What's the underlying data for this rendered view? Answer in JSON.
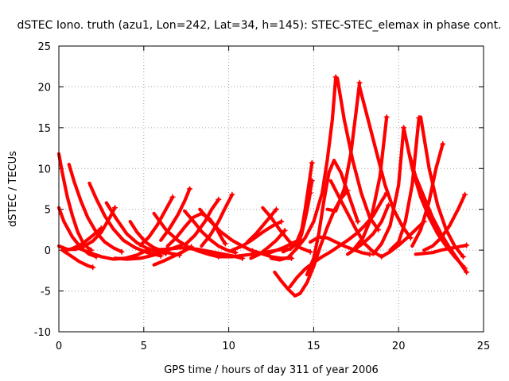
{
  "chart_data": {
    "type": "scatter",
    "title": "dSTEC Iono. truth (azu1, Lon=242, Lat=34, h=145): STEC-STEC_elemax in phase cont.",
    "xlabel": "GPS time / hours of day 311 of year 2006",
    "ylabel": "dSTEC  / TECUs",
    "xlim": [
      0,
      25
    ],
    "ylim": [
      -10,
      25
    ],
    "xticks": [
      "0",
      "5",
      "10",
      "15",
      "20",
      "25"
    ],
    "yticks": [
      "-10",
      "-5",
      "0",
      "5",
      "10",
      "15",
      "20",
      "25"
    ],
    "grid": true,
    "marker": "plus",
    "color": "#ff0000",
    "series": [
      {
        "x": [
          0.0,
          0.2,
          0.5,
          0.8,
          1.1,
          1.4,
          1.7,
          1.9
        ],
        "y": [
          11.8,
          9.5,
          6.5,
          4.2,
          2.3,
          1.0,
          0.3,
          0.0
        ]
      },
      {
        "x": [
          0.0,
          0.3,
          0.8,
          1.3,
          1.8,
          2.2
        ],
        "y": [
          5.2,
          3.5,
          1.6,
          0.3,
          -0.5,
          -0.8
        ]
      },
      {
        "x": [
          0.0,
          0.5,
          1.0,
          1.5,
          2.0,
          2.5,
          3.0,
          3.3
        ],
        "y": [
          0.5,
          0.1,
          0.1,
          0.5,
          1.1,
          2.2,
          4.0,
          5.2
        ]
      },
      {
        "x": [
          0.2,
          0.7,
          1.2,
          1.7,
          2.0
        ],
        "y": [
          0.0,
          -0.7,
          -1.4,
          -1.9,
          -2.1
        ]
      },
      {
        "x": [
          0.3,
          0.8,
          1.4,
          2.0,
          2.5
        ],
        "y": [
          -0.1,
          0.2,
          0.8,
          1.8,
          2.7
        ]
      },
      {
        "x": [
          0.6,
          0.9,
          1.3,
          1.7,
          2.2,
          2.7,
          3.2,
          3.7
        ],
        "y": [
          10.5,
          8.4,
          6.0,
          4.0,
          2.2,
          1.0,
          0.3,
          -0.2
        ]
      },
      {
        "x": [
          1.2,
          1.8,
          2.5,
          3.2,
          3.9,
          4.6,
          5.3
        ],
        "y": [
          0.2,
          -0.3,
          -0.8,
          -1.1,
          -1.0,
          -0.6,
          0.1
        ]
      },
      {
        "x": [
          1.8,
          2.2,
          2.7,
          3.2,
          3.8,
          4.5,
          5.2,
          6.0
        ],
        "y": [
          8.2,
          6.3,
          4.2,
          2.6,
          1.2,
          0.3,
          -0.3,
          -0.7
        ]
      },
      {
        "x": [
          2.8,
          3.4,
          4.0,
          4.6,
          5.2,
          5.8,
          6.3
        ],
        "y": [
          5.8,
          3.8,
          2.0,
          0.9,
          0.2,
          -0.2,
          -0.4
        ]
      },
      {
        "x": [
          3.3,
          4.0,
          4.8,
          5.6,
          6.4,
          7.2
        ],
        "y": [
          -1.0,
          -1.1,
          -1.0,
          -0.6,
          0.0,
          0.6
        ]
      },
      {
        "x": [
          4.2,
          4.6,
          5.1,
          5.6,
          6.1,
          6.6,
          7.1
        ],
        "y": [
          3.5,
          2.2,
          1.0,
          0.3,
          -0.1,
          -0.4,
          -0.6
        ]
      },
      {
        "x": [
          4.8,
          5.3,
          5.8,
          6.3,
          6.7
        ],
        "y": [
          0.6,
          1.6,
          3.1,
          5.0,
          6.5
        ]
      },
      {
        "x": [
          5.3,
          6.2,
          7.2,
          8.2,
          9.2,
          10.2,
          10.8
        ],
        "y": [
          0.0,
          0.1,
          0.3,
          0.1,
          -0.3,
          -0.7,
          -1.0
        ]
      },
      {
        "x": [
          5.6,
          6.3,
          7.0,
          7.6,
          8.2,
          8.8,
          9.4
        ],
        "y": [
          4.5,
          2.5,
          1.2,
          0.4,
          -0.1,
          -0.5,
          -0.8
        ]
      },
      {
        "x": [
          5.6,
          6.2,
          6.8,
          7.3,
          7.8
        ],
        "y": [
          -1.8,
          -1.3,
          -0.7,
          -0.2,
          0.4
        ]
      },
      {
        "x": [
          6.0,
          6.5,
          7.0,
          7.4,
          7.7
        ],
        "y": [
          1.2,
          2.6,
          4.3,
          6.0,
          7.5
        ]
      },
      {
        "x": [
          6.4,
          6.9,
          7.4,
          7.9,
          8.4,
          8.9,
          9.3,
          9.6,
          9.8
        ],
        "y": [
          0.5,
          1.5,
          2.8,
          4.0,
          4.5,
          3.8,
          2.6,
          1.4,
          0.8
        ]
      },
      {
        "x": [
          7.4,
          7.9,
          8.4,
          8.9,
          9.4,
          9.9,
          10.4
        ],
        "y": [
          4.8,
          3.6,
          2.3,
          1.3,
          0.5,
          0.0,
          -0.3
        ]
      },
      {
        "x": [
          7.5,
          8.0,
          8.6,
          9.0,
          9.4
        ],
        "y": [
          0.8,
          1.8,
          3.5,
          5.0,
          6.2
        ]
      },
      {
        "x": [
          8.4,
          8.9,
          9.4,
          9.8,
          10.2
        ],
        "y": [
          0.5,
          1.8,
          3.5,
          5.2,
          6.8
        ]
      },
      {
        "x": [
          8.3,
          8.8,
          9.5,
          10.2,
          10.8,
          11.4
        ],
        "y": [
          5.0,
          3.8,
          2.3,
          1.2,
          0.5,
          -0.1
        ]
      },
      {
        "x": [
          9.4,
          10.2,
          11.0,
          11.8,
          12.6,
          13.4
        ],
        "y": [
          -0.8,
          -0.8,
          -0.6,
          -0.4,
          -0.1,
          0.2
        ]
      },
      {
        "x": [
          10.2,
          10.8,
          11.4,
          12.0,
          12.6,
          13.1
        ],
        "y": [
          0.0,
          0.5,
          1.3,
          2.2,
          3.0,
          3.5
        ]
      },
      {
        "x": [
          11.1,
          11.6,
          12.0,
          12.4,
          12.8
        ],
        "y": [
          1.0,
          2.0,
          3.0,
          4.0,
          5.0
        ]
      },
      {
        "x": [
          11.3,
          11.8,
          12.3,
          12.8,
          13.3
        ],
        "y": [
          -1.0,
          -0.5,
          0.3,
          1.2,
          2.4
        ]
      },
      {
        "x": [
          11.3,
          11.9,
          12.5,
          13.1,
          13.7
        ],
        "y": [
          0.0,
          -0.4,
          -0.8,
          -1.0,
          -1.0
        ]
      },
      {
        "x": [
          12.0,
          12.5,
          13.0,
          13.6,
          14.2,
          14.8
        ],
        "y": [
          5.2,
          4.0,
          2.5,
          1.0,
          0.3,
          -0.2
        ]
      },
      {
        "x": [
          12.2,
          12.7,
          13.2,
          13.7,
          14.2
        ],
        "y": [
          -0.5,
          -0.1,
          0.3,
          0.8,
          1.3
        ]
      },
      {
        "x": [
          12.5,
          13.0,
          13.5,
          14.0,
          14.3,
          14.6,
          14.8
        ],
        "y": [
          -1.0,
          -1.2,
          -0.9,
          0.2,
          2.0,
          4.8,
          7.0
        ]
      },
      {
        "x": [
          13.2,
          13.6,
          14.0,
          14.4,
          14.7,
          14.9
        ],
        "y": [
          -0.2,
          0.2,
          1.0,
          3.0,
          6.0,
          8.5
        ]
      },
      {
        "x": [
          13.6,
          14.0,
          14.3,
          14.5,
          14.7,
          14.9
        ],
        "y": [
          0.1,
          0.8,
          2.5,
          5.0,
          7.8,
          10.7
        ]
      },
      {
        "x": [
          12.7,
          13.1,
          13.5,
          13.9,
          14.2,
          14.6,
          15.0,
          15.4,
          15.8,
          16.2,
          16.6,
          17.0
        ],
        "y": [
          -2.7,
          -3.8,
          -4.8,
          -5.6,
          -5.3,
          -4.0,
          -2.0,
          0.5,
          2.8,
          4.8,
          6.3,
          7.3
        ]
      },
      {
        "x": [
          13.6,
          14.0,
          14.5,
          15.0,
          15.5,
          16.0,
          16.5,
          17.0,
          17.5,
          18.0,
          18.5,
          19.0,
          19.3
        ],
        "y": [
          -4.5,
          -3.4,
          -2.3,
          -1.5,
          -0.8,
          -0.2,
          0.5,
          1.2,
          2.0,
          3.0,
          4.2,
          6.0,
          7.0
        ]
      },
      {
        "x": [
          14.0,
          14.5,
          15.0,
          15.5,
          15.8,
          16.1,
          16.3
        ],
        "y": [
          0.2,
          1.5,
          3.5,
          7.0,
          11.0,
          16.0,
          21.2
        ]
      },
      {
        "x": [
          14.6,
          15.0,
          15.3,
          15.6,
          15.9,
          16.2,
          16.6,
          17.1,
          17.6
        ],
        "y": [
          -3.0,
          -1.0,
          2.0,
          6.0,
          9.5,
          11.0,
          9.5,
          6.5,
          3.5
        ]
      },
      {
        "x": [
          14.8,
          15.3,
          15.8,
          16.3,
          16.8,
          17.3,
          17.8,
          18.3
        ],
        "y": [
          1.0,
          1.6,
          1.5,
          1.0,
          0.5,
          0.1,
          -0.3,
          -0.5
        ]
      },
      {
        "x": [
          15.8,
          16.3,
          16.8,
          17.2,
          17.5,
          17.7
        ],
        "y": [
          5.0,
          4.8,
          7.5,
          12.0,
          17.0,
          20.5
        ]
      },
      {
        "x": [
          16.0,
          16.5,
          17.0,
          17.5,
          18.0,
          18.5,
          19.0
        ],
        "y": [
          8.5,
          6.5,
          4.5,
          2.5,
          0.8,
          -0.2,
          -0.8
        ]
      },
      {
        "x": [
          16.4,
          16.8,
          17.3,
          17.8,
          18.3,
          18.8
        ],
        "y": [
          21.0,
          16.0,
          11.0,
          7.0,
          4.0,
          2.5
        ]
      },
      {
        "x": [
          17.0,
          17.5,
          18.0,
          18.5,
          19.0,
          19.4
        ],
        "y": [
          -0.5,
          0.2,
          1.0,
          2.0,
          3.5,
          5.5
        ]
      },
      {
        "x": [
          17.4,
          17.9,
          18.4,
          18.9,
          19.3
        ],
        "y": [
          0.2,
          1.5,
          4.0,
          9.0,
          16.3
        ]
      },
      {
        "x": [
          17.7,
          18.2,
          18.7,
          19.2,
          19.7,
          20.2,
          20.7
        ],
        "y": [
          20.0,
          16.0,
          12.0,
          8.0,
          5.0,
          3.0,
          1.5
        ]
      },
      {
        "x": [
          18.5,
          19.0,
          19.5,
          20.0,
          20.3
        ],
        "y": [
          -0.5,
          0.8,
          3.0,
          8.0,
          15.0
        ]
      },
      {
        "x": [
          19.0,
          19.5,
          20.0,
          20.5,
          21.0,
          21.5
        ],
        "y": [
          -0.8,
          -0.2,
          0.6,
          1.5,
          2.5,
          3.5
        ]
      },
      {
        "x": [
          19.5,
          20.0,
          20.4,
          20.8,
          21.2
        ],
        "y": [
          0.0,
          1.0,
          3.5,
          8.0,
          16.2
        ]
      },
      {
        "x": [
          20.3,
          20.8,
          21.3,
          21.8,
          22.3,
          22.8,
          23.3,
          23.9
        ],
        "y": [
          15.0,
          10.0,
          6.5,
          4.0,
          2.0,
          0.5,
          -0.8,
          -2.2
        ]
      },
      {
        "x": [
          20.6,
          21.0,
          21.5,
          22.0,
          22.5,
          23.0,
          23.5,
          24.0
        ],
        "y": [
          12.0,
          9.0,
          6.5,
          4.0,
          2.0,
          0.3,
          -1.2,
          -2.7
        ]
      },
      {
        "x": [
          20.8,
          21.3,
          21.8,
          22.2,
          22.6
        ],
        "y": [
          0.5,
          2.5,
          6.0,
          10.0,
          13.0
        ]
      },
      {
        "x": [
          21.0,
          21.5,
          22.0,
          22.5,
          23.0,
          23.5,
          24.0
        ],
        "y": [
          -0.5,
          -0.4,
          -0.3,
          0.0,
          0.2,
          0.4,
          0.6
        ]
      },
      {
        "x": [
          21.3,
          21.8,
          22.3,
          22.8,
          23.3,
          23.8
        ],
        "y": [
          16.3,
          10.0,
          5.5,
          2.5,
          0.5,
          -0.8
        ]
      },
      {
        "x": [
          21.5,
          22.0,
          22.5,
          23.0,
          23.5,
          23.9
        ],
        "y": [
          0.0,
          0.5,
          1.5,
          3.0,
          5.0,
          6.8
        ]
      }
    ]
  }
}
